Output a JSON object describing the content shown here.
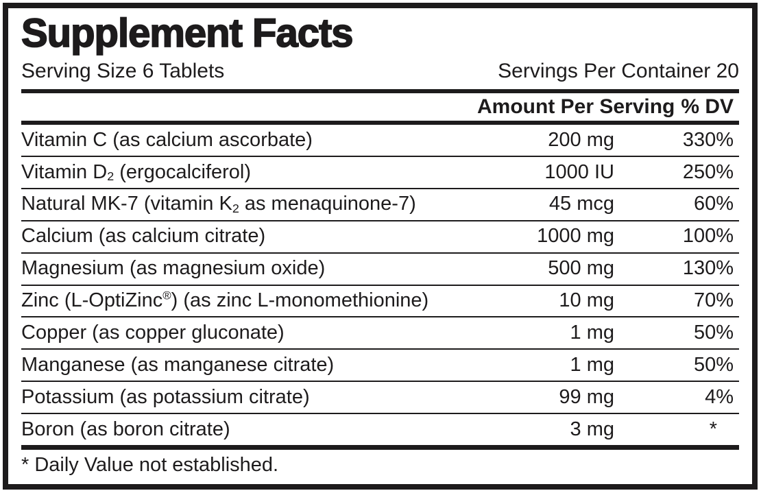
{
  "title": "Supplement Facts",
  "serving": {
    "size_label": "Serving Size 6 Tablets",
    "per_container_label": "Servings Per Container 20"
  },
  "columns": {
    "amount_header": "Amount Per Serving",
    "dv_header": "% DV"
  },
  "rows": [
    {
      "name_parts": [
        {
          "text": "Vitamin C (as calcium ascorbate)"
        }
      ],
      "amount": "200 mg",
      "dv": "330%"
    },
    {
      "name_parts": [
        {
          "text": "Vitamin D"
        },
        {
          "text": "2",
          "style": "sub"
        },
        {
          "text": " (ergocalciferol)"
        }
      ],
      "amount": "1000 IU",
      "dv": "250%"
    },
    {
      "name_parts": [
        {
          "text": "Natural MK-7 (vitamin K"
        },
        {
          "text": "2",
          "style": "sub"
        },
        {
          "text": " as menaquinone-7)"
        }
      ],
      "amount": "45 mcg",
      "dv": "60%"
    },
    {
      "name_parts": [
        {
          "text": "Calcium (as calcium citrate)"
        }
      ],
      "amount": "1000 mg",
      "dv": "100%"
    },
    {
      "name_parts": [
        {
          "text": "Magnesium (as magnesium oxide)"
        }
      ],
      "amount": "500 mg",
      "dv": "130%"
    },
    {
      "name_parts": [
        {
          "text": "Zinc (L-OptiZinc"
        },
        {
          "text": "®",
          "style": "sup"
        },
        {
          "text": ") (as zinc L-monomethionine)"
        }
      ],
      "amount": "10 mg",
      "dv": "70%"
    },
    {
      "name_parts": [
        {
          "text": "Copper (as copper gluconate)"
        }
      ],
      "amount": "1 mg",
      "dv": "50%"
    },
    {
      "name_parts": [
        {
          "text": "Manganese (as manganese citrate)"
        }
      ],
      "amount": "1 mg",
      "dv": "50%"
    },
    {
      "name_parts": [
        {
          "text": "Potassium (as potassium citrate)"
        }
      ],
      "amount": "99 mg",
      "dv": "4%"
    },
    {
      "name_parts": [
        {
          "text": "Boron (as boron citrate)"
        }
      ],
      "amount": "3 mg",
      "dv": "*"
    }
  ],
  "footnote": "* Daily Value not established.",
  "colors": {
    "ink": "#1d1b1c",
    "background": "#ffffff"
  }
}
